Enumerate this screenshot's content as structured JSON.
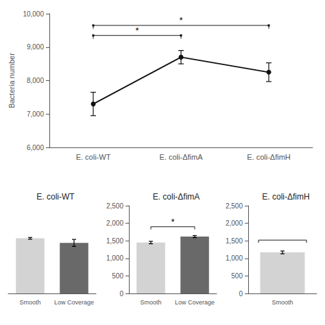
{
  "chart_data": [
    {
      "type": "line",
      "categories": [
        "E. coli-WT",
        "E. coli-ΔfimA",
        "E. coli-ΔfimH"
      ],
      "values": [
        7300,
        8700,
        8250
      ],
      "errors": [
        350,
        200,
        280
      ],
      "ylabel": "Bacteria number",
      "ylim": [
        6000,
        10000
      ],
      "yticks": [
        6000,
        7000,
        8000,
        9000,
        10000
      ],
      "color": "#111111",
      "marker": "circle",
      "grid": false,
      "annotations": [
        {
          "from": "E. coli-WT",
          "to": "E. coli-ΔfimA",
          "y": 9350,
          "label": "*"
        },
        {
          "from": "E. coli-WT",
          "to": "E. coli-ΔfimH",
          "y": 9650,
          "label": "*"
        }
      ]
    },
    {
      "type": "bar",
      "title": "E. coli-WT",
      "categories": [
        "Smooth",
        "Low Coverage"
      ],
      "values": [
        1570,
        1440
      ],
      "errors": [
        25,
        100
      ],
      "colors": [
        "#d3d3d3",
        "#696969"
      ],
      "ylim": [
        0,
        2500
      ],
      "yticks": [
        0,
        500,
        1000,
        1500,
        2000,
        2500
      ],
      "grid": false,
      "tick_labels": "x"
    },
    {
      "type": "bar",
      "title": "E. coli-ΔfimA",
      "categories": [
        "Smooth",
        "Low Coverage"
      ],
      "values": [
        1450,
        1620
      ],
      "errors": [
        35,
        30
      ],
      "colors": [
        "#d3d3d3",
        "#696969"
      ],
      "ylim": [
        0,
        2500
      ],
      "yticks": [
        0,
        500,
        1000,
        1500,
        2000,
        2500
      ],
      "grid": false,
      "annotations": [
        {
          "from": "Smooth",
          "to": "Low Coverage",
          "y": 1900,
          "label": "*"
        }
      ]
    },
    {
      "type": "bar",
      "title": "E. coli-ΔfimH",
      "categories": [
        "Smooth"
      ],
      "values": [
        1170
      ],
      "errors": [
        40
      ],
      "colors": [
        "#d3d3d3"
      ],
      "ylim": [
        0,
        2500
      ],
      "yticks": [
        0,
        500,
        1000,
        1500,
        2000,
        2500
      ],
      "grid": false,
      "annotations": [
        {
          "from": "Smooth",
          "to": "Smooth",
          "y": 1520
        }
      ]
    }
  ]
}
